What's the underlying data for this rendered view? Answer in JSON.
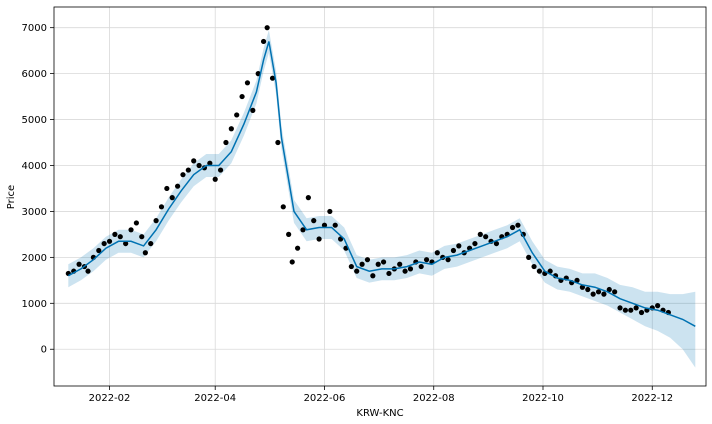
{
  "chart_data": {
    "type": "line",
    "title": "",
    "xlabel": "KRW-KNC",
    "ylabel": "Price",
    "x_type": "date",
    "xlim": [
      "2022-01-01",
      "2022-12-31"
    ],
    "ylim": [
      -800,
      7450
    ],
    "grid": true,
    "legend": "none",
    "x_ticks": [
      "2022-02-01",
      "2022-04-01",
      "2022-06-01",
      "2022-08-01",
      "2022-10-01",
      "2022-12-01"
    ],
    "x_tick_labels": [
      "2022-02",
      "2022-04",
      "2022-06",
      "2022-08",
      "2022-10",
      "2022-12"
    ],
    "y_ticks": [
      0,
      1000,
      2000,
      3000,
      4000,
      5000,
      6000,
      7000
    ],
    "y_tick_labels": [
      "0",
      "1000",
      "2000",
      "3000",
      "4000",
      "5000",
      "6000",
      "7000"
    ],
    "colors": {
      "observed": "#000000",
      "forecast": "#0072B2",
      "interval": "#0072B2",
      "grid": "#d9d9d9",
      "frame": "#000000"
    },
    "series": [
      {
        "role": "observed",
        "marker": "dot",
        "x": [
          "2022-01-09",
          "2022-01-12",
          "2022-01-15",
          "2022-01-18",
          "2022-01-20",
          "2022-01-23",
          "2022-01-26",
          "2022-01-29",
          "2022-02-01",
          "2022-02-04",
          "2022-02-07",
          "2022-02-10",
          "2022-02-13",
          "2022-02-16",
          "2022-02-19",
          "2022-02-21",
          "2022-02-24",
          "2022-02-27",
          "2022-03-02",
          "2022-03-05",
          "2022-03-08",
          "2022-03-11",
          "2022-03-14",
          "2022-03-17",
          "2022-03-20",
          "2022-03-23",
          "2022-03-26",
          "2022-03-29",
          "2022-04-01",
          "2022-04-04",
          "2022-04-07",
          "2022-04-10",
          "2022-04-13",
          "2022-04-16",
          "2022-04-19",
          "2022-04-22",
          "2022-04-25",
          "2022-04-28",
          "2022-04-30",
          "2022-05-03",
          "2022-05-06",
          "2022-05-09",
          "2022-05-12",
          "2022-05-14",
          "2022-05-17",
          "2022-05-20",
          "2022-05-23",
          "2022-05-26",
          "2022-05-29",
          "2022-06-01",
          "2022-06-04",
          "2022-06-07",
          "2022-06-10",
          "2022-06-13",
          "2022-06-16",
          "2022-06-19",
          "2022-06-22",
          "2022-06-25",
          "2022-06-28",
          "2022-07-01",
          "2022-07-04",
          "2022-07-07",
          "2022-07-10",
          "2022-07-13",
          "2022-07-16",
          "2022-07-19",
          "2022-07-22",
          "2022-07-25",
          "2022-07-28",
          "2022-07-31",
          "2022-08-03",
          "2022-08-06",
          "2022-08-09",
          "2022-08-12",
          "2022-08-15",
          "2022-08-18",
          "2022-08-21",
          "2022-08-24",
          "2022-08-27",
          "2022-08-30",
          "2022-09-02",
          "2022-09-05",
          "2022-09-08",
          "2022-09-11",
          "2022-09-14",
          "2022-09-17",
          "2022-09-20",
          "2022-09-23",
          "2022-09-26",
          "2022-09-29",
          "2022-10-02",
          "2022-10-05",
          "2022-10-08",
          "2022-10-11",
          "2022-10-14",
          "2022-10-17",
          "2022-10-20",
          "2022-10-23",
          "2022-10-26",
          "2022-10-29",
          "2022-11-01",
          "2022-11-04",
          "2022-11-07",
          "2022-11-10",
          "2022-11-13",
          "2022-11-16",
          "2022-11-19",
          "2022-11-22",
          "2022-11-25",
          "2022-11-28",
          "2022-12-01",
          "2022-12-04",
          "2022-12-07",
          "2022-12-10"
        ],
        "y": [
          1650,
          1700,
          1850,
          1800,
          1700,
          2000,
          2150,
          2300,
          2350,
          2500,
          2450,
          2300,
          2600,
          2750,
          2450,
          2100,
          2300,
          2800,
          3100,
          3500,
          3300,
          3550,
          3800,
          3900,
          4100,
          4000,
          3950,
          4050,
          3700,
          3900,
          4500,
          4800,
          5100,
          5500,
          5800,
          5200,
          6000,
          6700,
          7000,
          5900,
          4500,
          3100,
          2500,
          1900,
          2200,
          2600,
          3300,
          2800,
          2400,
          2700,
          3000,
          2700,
          2400,
          2200,
          1800,
          1700,
          1850,
          1950,
          1600,
          1850,
          1900,
          1650,
          1750,
          1850,
          1700,
          1750,
          1900,
          1800,
          1950,
          1900,
          2100,
          2000,
          1950,
          2150,
          2250,
          2100,
          2200,
          2300,
          2500,
          2450,
          2350,
          2300,
          2450,
          2500,
          2650,
          2700,
          2500,
          2000,
          1800,
          1700,
          1650,
          1700,
          1600,
          1500,
          1550,
          1450,
          1500,
          1350,
          1300,
          1200,
          1250,
          1200,
          1300,
          1250,
          900,
          850,
          850,
          900,
          800,
          850,
          900,
          950,
          850,
          800
        ]
      },
      {
        "role": "forecast",
        "x": [
          "2022-01-09",
          "2022-01-16",
          "2022-01-23",
          "2022-01-30",
          "2022-02-06",
          "2022-02-13",
          "2022-02-20",
          "2022-02-27",
          "2022-03-06",
          "2022-03-13",
          "2022-03-20",
          "2022-03-27",
          "2022-04-03",
          "2022-04-10",
          "2022-04-17",
          "2022-04-24",
          "2022-04-28",
          "2022-05-01",
          "2022-05-05",
          "2022-05-08",
          "2022-05-15",
          "2022-05-22",
          "2022-05-29",
          "2022-06-05",
          "2022-06-12",
          "2022-06-19",
          "2022-06-26",
          "2022-07-03",
          "2022-07-10",
          "2022-07-17",
          "2022-07-24",
          "2022-07-31",
          "2022-08-07",
          "2022-08-14",
          "2022-08-21",
          "2022-08-28",
          "2022-09-04",
          "2022-09-11",
          "2022-09-18",
          "2022-09-25",
          "2022-10-02",
          "2022-10-09",
          "2022-10-16",
          "2022-10-23",
          "2022-10-30",
          "2022-11-06",
          "2022-11-13",
          "2022-11-20",
          "2022-11-27",
          "2022-12-04",
          "2022-12-11",
          "2022-12-18",
          "2022-12-25"
        ],
        "y": [
          1600,
          1750,
          1950,
          2200,
          2350,
          2350,
          2250,
          2600,
          3050,
          3450,
          3800,
          4000,
          4000,
          4300,
          4900,
          5600,
          6300,
          6700,
          5800,
          4600,
          3000,
          2600,
          2650,
          2650,
          2400,
          1800,
          1700,
          1750,
          1750,
          1800,
          1900,
          1850,
          2000,
          2050,
          2150,
          2250,
          2350,
          2450,
          2600,
          2100,
          1700,
          1550,
          1500,
          1400,
          1350,
          1250,
          1100,
          1000,
          900,
          850,
          750,
          650,
          500
        ],
        "lower": [
          1350,
          1500,
          1700,
          1950,
          2100,
          2100,
          2000,
          2350,
          2800,
          3200,
          3550,
          3750,
          3750,
          4050,
          4650,
          5350,
          6050,
          6450,
          5550,
          4350,
          2750,
          2350,
          2400,
          2400,
          2150,
          1550,
          1450,
          1500,
          1500,
          1550,
          1650,
          1600,
          1750,
          1800,
          1900,
          2000,
          2100,
          2200,
          2350,
          1850,
          1450,
          1300,
          1250,
          1150,
          1050,
          950,
          800,
          650,
          500,
          400,
          250,
          0,
          -400
        ],
        "upper": [
          1850,
          2000,
          2200,
          2450,
          2600,
          2600,
          2500,
          2850,
          3300,
          3700,
          4050,
          4250,
          4250,
          4550,
          5150,
          5850,
          6550,
          6950,
          6050,
          4850,
          3250,
          2850,
          2900,
          2900,
          2650,
          2050,
          1950,
          2000,
          2000,
          2050,
          2150,
          2100,
          2250,
          2300,
          2400,
          2500,
          2600,
          2700,
          2850,
          2350,
          1950,
          1800,
          1750,
          1650,
          1650,
          1550,
          1400,
          1350,
          1250,
          1250,
          1200,
          1200,
          1250
        ]
      }
    ]
  }
}
